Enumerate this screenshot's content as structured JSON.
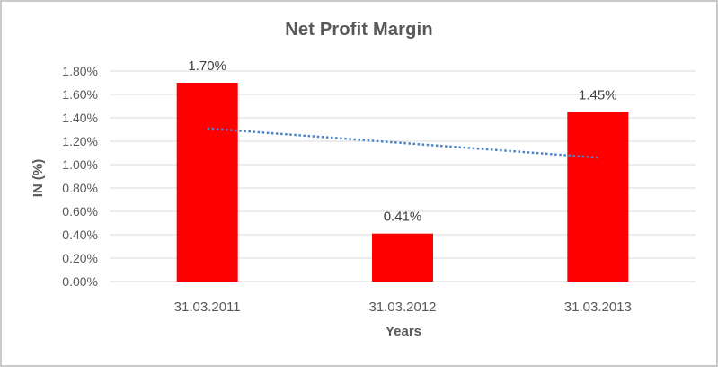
{
  "chart_data": {
    "type": "bar",
    "title": "Net Profit Margin",
    "xlabel": "Years",
    "ylabel": "IN (%)",
    "categories": [
      "31.03.2011",
      "31.03.2012",
      "31.03.2013"
    ],
    "values": [
      1.7,
      0.41,
      1.45
    ],
    "data_labels": [
      "1.70%",
      "0.41%",
      "1.45%"
    ],
    "ylim": [
      0,
      1.8
    ],
    "y_tick_step": 0.2,
    "y_tick_labels": [
      "0.00%",
      "0.20%",
      "0.40%",
      "0.60%",
      "0.80%",
      "1.00%",
      "1.20%",
      "1.40%",
      "1.60%",
      "1.80%"
    ],
    "grid": true,
    "legend": "none",
    "trendline": {
      "type": "linear",
      "style": "dotted",
      "start_value": 1.31,
      "end_value": 1.06
    },
    "colors": {
      "bar": "#ff0000",
      "trendline": "#4a86c5",
      "gridline": "#d9d9d9",
      "axis_text": "#595959",
      "data_label_text": "#404040",
      "title_text": "#595959",
      "frame_border": "#c9c9c9",
      "background": "#ffffff"
    }
  }
}
